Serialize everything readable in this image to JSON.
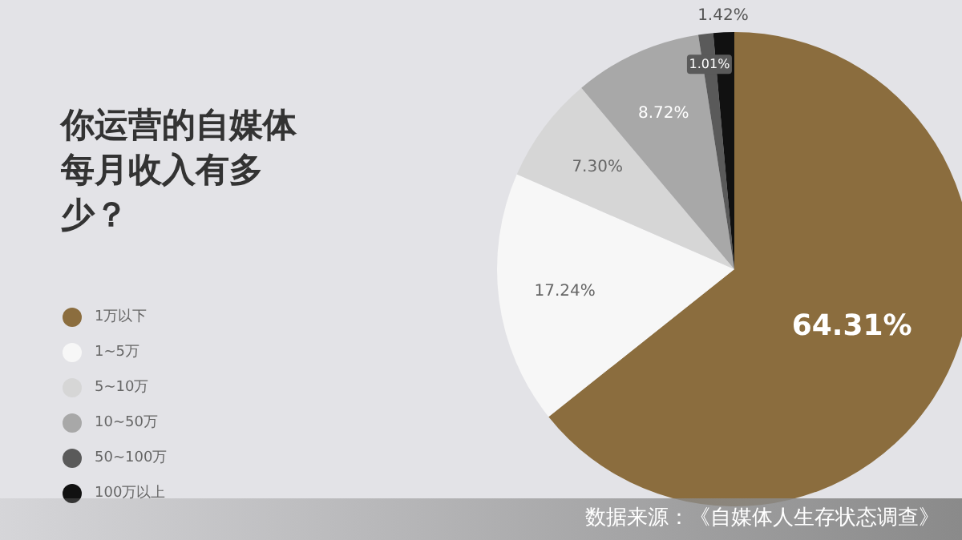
{
  "chart_data": {
    "type": "pie",
    "title": "你运营的自媒体每月收入有多少？",
    "categories": [
      "1万以下",
      "1~5万",
      "5~10万",
      "10~50万",
      "50~100万",
      "100万以上"
    ],
    "values": [
      64.31,
      17.24,
      7.3,
      8.72,
      1.01,
      1.42
    ],
    "colors": [
      "#8b6d3e",
      "#f7f7f7",
      "#d6d6d6",
      "#a8a8a8",
      "#5a5a5a",
      "#111111"
    ],
    "value_labels": [
      "64.31%",
      "17.24%",
      "7.30%",
      "8.72%",
      "1.01%",
      "1.42%"
    ],
    "legend": "left",
    "annotations": [
      "数据来源：《自媒体人生存状态调查》"
    ]
  }
}
